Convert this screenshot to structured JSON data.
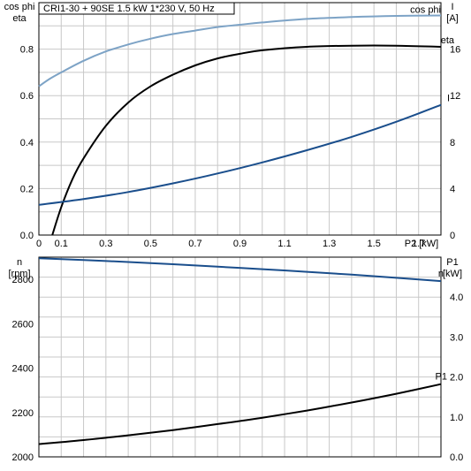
{
  "chart_data": [
    {
      "type": "line",
      "title": "CRI1-30 + 90SE   1.5 kW   1*230 V, 50 Hz",
      "xlabel": "P2 [kW]",
      "xlim": [
        0,
        1.8
      ],
      "x_ticks": [
        "0",
        "0.1",
        "0.3",
        "0.5",
        "0.7",
        "0.9",
        "1.1",
        "1.3",
        "1.5",
        "1.7"
      ],
      "y_left_label": [
        "cos phi",
        "eta"
      ],
      "y_left_ticks": [
        "0.0",
        "0.2",
        "0.4",
        "0.6",
        "0.8"
      ],
      "ylim_left": [
        0,
        1.0
      ],
      "y_right_label": [
        "I",
        "[A]"
      ],
      "y_right_ticks": [
        "0",
        "4",
        "8",
        "12",
        "16"
      ],
      "ylim_right": [
        0,
        20
      ],
      "grid": true,
      "series": [
        {
          "name": "cos phi",
          "axis": "left",
          "color": "#7da3c6",
          "x": [
            0,
            0.05,
            0.1,
            0.2,
            0.3,
            0.4,
            0.5,
            0.6,
            0.7,
            0.8,
            0.9,
            1.0,
            1.2,
            1.4,
            1.6,
            1.8
          ],
          "y": [
            0.64,
            0.673,
            0.7,
            0.75,
            0.79,
            0.82,
            0.845,
            0.865,
            0.88,
            0.895,
            0.905,
            0.915,
            0.93,
            0.938,
            0.943,
            0.945
          ]
        },
        {
          "name": "eta",
          "axis": "left",
          "color": "#000000",
          "x": [
            0.06,
            0.1,
            0.15,
            0.2,
            0.3,
            0.4,
            0.5,
            0.6,
            0.7,
            0.8,
            0.9,
            1.0,
            1.2,
            1.4,
            1.6,
            1.8
          ],
          "y": [
            0.0,
            0.12,
            0.24,
            0.33,
            0.47,
            0.57,
            0.64,
            0.69,
            0.73,
            0.76,
            0.78,
            0.795,
            0.81,
            0.815,
            0.815,
            0.81
          ]
        },
        {
          "name": "I",
          "axis": "right",
          "color": "#1a4e8c",
          "x": [
            0,
            0.2,
            0.4,
            0.6,
            0.8,
            1.0,
            1.2,
            1.4,
            1.6,
            1.8
          ],
          "y": [
            2.6,
            3.1,
            3.7,
            4.45,
            5.3,
            6.25,
            7.3,
            8.45,
            9.75,
            11.2
          ]
        }
      ]
    },
    {
      "type": "line",
      "xlim": [
        0,
        1.8
      ],
      "y_left_label": [
        "n",
        "[rpm]"
      ],
      "y_left_ticks": [
        "2000",
        "2200",
        "2400",
        "2600",
        "2800"
      ],
      "ylim_left": [
        2000,
        2900
      ],
      "y_right_label": [
        "P1",
        "[kW]"
      ],
      "y_right_ticks": [
        "0.0",
        "1.0",
        "2.0",
        "3.0",
        "4.0"
      ],
      "ylim_right": [
        0,
        5.0
      ],
      "grid": true,
      "series": [
        {
          "name": "n",
          "axis": "left",
          "color": "#1a4e8c",
          "x": [
            0,
            0.2,
            0.4,
            0.6,
            0.8,
            1.0,
            1.2,
            1.4,
            1.6,
            1.8
          ],
          "y": [
            2895,
            2887,
            2878,
            2868,
            2857,
            2846,
            2834,
            2821,
            2807,
            2792
          ]
        },
        {
          "name": "P1",
          "axis": "right",
          "color": "#000000",
          "x": [
            0,
            0.2,
            0.4,
            0.6,
            0.8,
            1.0,
            1.2,
            1.4,
            1.6,
            1.8
          ],
          "y": [
            0.32,
            0.42,
            0.54,
            0.67,
            0.82,
            0.98,
            1.16,
            1.36,
            1.58,
            1.82
          ]
        }
      ]
    }
  ]
}
